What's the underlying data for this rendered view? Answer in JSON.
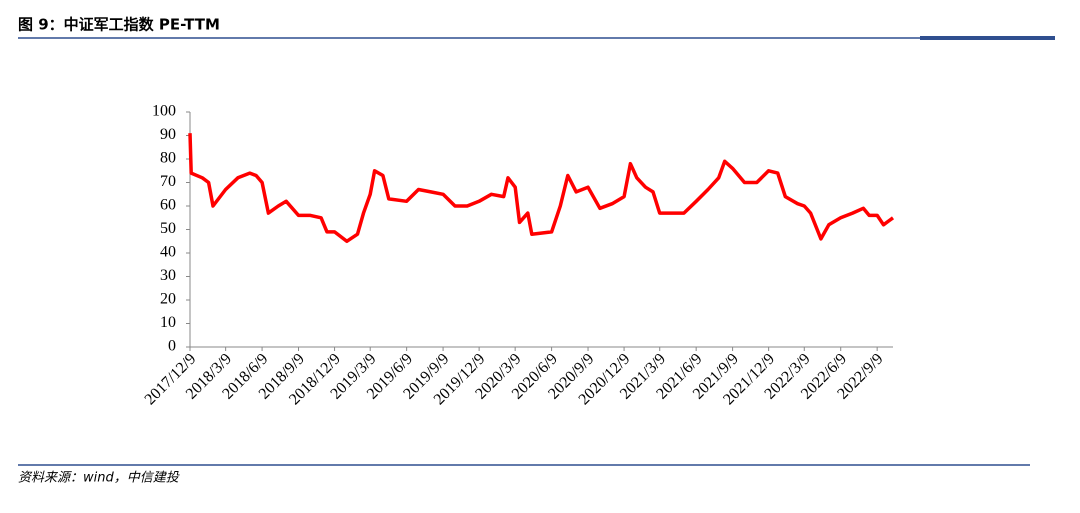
{
  "header": {
    "title": "图 9：中证军工指数 PE-TTM"
  },
  "chart_data": {
    "type": "line",
    "x": [
      "2017/12/9",
      "2017/12/12",
      "2018/1/9",
      "2018/1/25",
      "2018/2/5",
      "2018/3/9",
      "2018/4/9",
      "2018/5/9",
      "2018/5/25",
      "2018/6/9",
      "2018/6/25",
      "2018/7/20",
      "2018/8/9",
      "2018/9/9",
      "2018/10/9",
      "2018/11/5",
      "2018/11/20",
      "2018/12/9",
      "2019/1/9",
      "2019/2/5",
      "2019/2/20",
      "2019/3/9",
      "2019/3/20",
      "2019/4/10",
      "2019/4/25",
      "2019/6/9",
      "2019/7/9",
      "2019/8/9",
      "2019/9/9",
      "2019/10/9",
      "2019/11/9",
      "2019/12/9",
      "2020/1/9",
      "2020/2/9",
      "2020/2/20",
      "2020/3/9",
      "2020/3/20",
      "2020/4/10",
      "2020/4/20",
      "2020/6/9",
      "2020/7/1",
      "2020/7/20",
      "2020/8/10",
      "2020/9/9",
      "2020/10/9",
      "2020/11/9",
      "2020/12/9",
      "2020/12/25",
      "2021/1/10",
      "2021/2/1",
      "2021/2/20",
      "2021/3/9",
      "2021/4/9",
      "2021/5/9",
      "2021/6/9",
      "2021/7/9",
      "2021/8/5",
      "2021/8/20",
      "2021/9/9",
      "2021/10/9",
      "2021/11/9",
      "2021/12/9",
      "2022/1/1",
      "2022/1/20",
      "2022/2/20",
      "2022/3/9",
      "2022/3/25",
      "2022/4/20",
      "2022/5/10",
      "2022/6/9",
      "2022/7/9",
      "2022/8/5",
      "2022/8/20",
      "2022/9/9",
      "2022/9/25",
      "2022/10/19"
    ],
    "series": [
      {
        "name": "PE-TTM",
        "color": "#ff0000",
        "values": [
          91,
          74,
          72,
          70,
          60,
          67,
          72,
          74,
          73,
          70,
          57,
          60,
          62,
          56,
          56,
          55,
          49,
          49,
          45,
          48,
          57,
          65,
          75,
          73,
          63,
          62,
          67,
          66,
          65,
          60,
          60,
          62,
          65,
          64,
          72,
          68,
          53,
          57,
          48,
          49,
          60,
          73,
          66,
          68,
          59,
          61,
          64,
          78,
          72,
          68,
          66,
          57,
          57,
          57,
          62,
          67,
          72,
          79,
          76,
          70,
          70,
          75,
          74,
          64,
          61,
          60,
          57,
          46,
          52,
          55,
          57,
          59,
          56,
          56,
          52,
          55
        ]
      }
    ],
    "xlim": [
      "2017/12/9",
      "2022/10/19"
    ],
    "xticks": [
      "2017/12/9",
      "2018/3/9",
      "2018/6/9",
      "2018/9/9",
      "2018/12/9",
      "2019/3/9",
      "2019/6/9",
      "2019/9/9",
      "2019/12/9",
      "2020/3/9",
      "2020/6/9",
      "2020/9/9",
      "2020/12/9",
      "2021/3/9",
      "2021/6/9",
      "2021/9/9",
      "2021/12/9",
      "2022/3/9",
      "2022/6/9",
      "2022/9/9"
    ],
    "ylim": [
      0,
      100
    ],
    "yticks": [
      0,
      10,
      20,
      30,
      40,
      50,
      60,
      70,
      80,
      90,
      100
    ]
  },
  "footer": {
    "source": "资料来源：wind，中信建投"
  }
}
